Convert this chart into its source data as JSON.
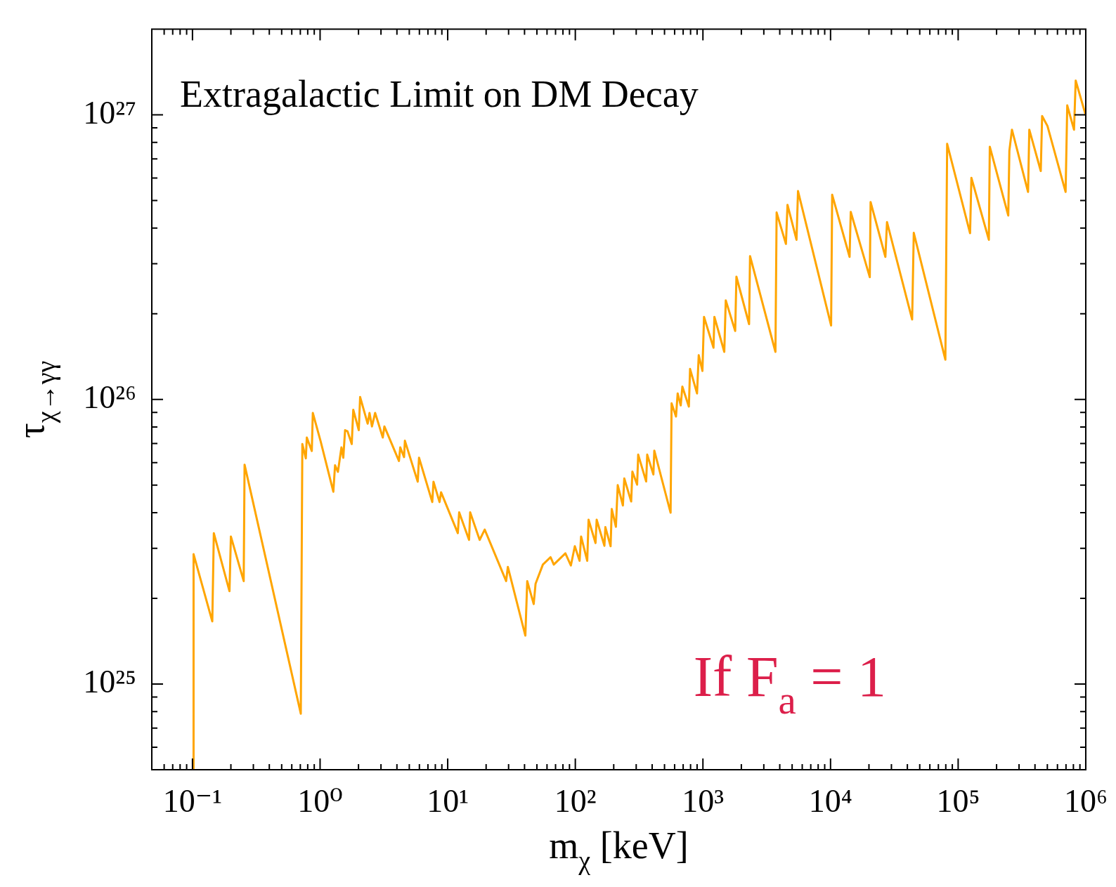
{
  "chart_data": {
    "type": "line",
    "title": "Extragalactic Limit on DM Decay",
    "xlabel": "m$_{χ}$ [keV]",
    "ylabel": "τ$_{χ→γγ}$",
    "annotations": [
      "If F$_{a}$ = 1"
    ],
    "log": "xy",
    "marker": "none",
    "color": "#ffa500",
    "xlim": [
      0.048,
      1000000
    ],
    "ylim": [
      5e+24,
      2e+27
    ],
    "xticks": [
      {
        "value": 0.06,
        "label": null
      },
      {
        "value": 0.07,
        "label": null
      },
      {
        "value": 0.08,
        "label": null
      },
      {
        "value": 0.09,
        "label": null
      },
      {
        "value": 0.1,
        "label": "10⁻¹"
      },
      {
        "value": 0.2,
        "label": null
      },
      {
        "value": 0.3,
        "label": null
      },
      {
        "value": 0.4,
        "label": null
      },
      {
        "value": 0.5,
        "label": null
      },
      {
        "value": 0.6,
        "label": null
      },
      {
        "value": 0.7,
        "label": null
      },
      {
        "value": 0.8,
        "label": null
      },
      {
        "value": 0.9,
        "label": null
      },
      {
        "value": 1,
        "label": "10⁰"
      },
      {
        "value": 2,
        "label": null
      },
      {
        "value": 3,
        "label": null
      },
      {
        "value": 4,
        "label": null
      },
      {
        "value": 5,
        "label": null
      },
      {
        "value": 6,
        "label": null
      },
      {
        "value": 7,
        "label": null
      },
      {
        "value": 8,
        "label": null
      },
      {
        "value": 9,
        "label": null
      },
      {
        "value": 10,
        "label": "10¹"
      },
      {
        "value": 20,
        "label": null
      },
      {
        "value": 30,
        "label": null
      },
      {
        "value": 40,
        "label": null
      },
      {
        "value": 50,
        "label": null
      },
      {
        "value": 60,
        "label": null
      },
      {
        "value": 70,
        "label": null
      },
      {
        "value": 80,
        "label": null
      },
      {
        "value": 90,
        "label": null
      },
      {
        "value": 100,
        "label": "10²"
      },
      {
        "value": 200,
        "label": null
      },
      {
        "value": 300,
        "label": null
      },
      {
        "value": 400,
        "label": null
      },
      {
        "value": 500,
        "label": null
      },
      {
        "value": 600,
        "label": null
      },
      {
        "value": 700,
        "label": null
      },
      {
        "value": 800,
        "label": null
      },
      {
        "value": 900,
        "label": null
      },
      {
        "value": 1000,
        "label": "10³"
      },
      {
        "value": 2000,
        "label": null
      },
      {
        "value": 3000,
        "label": null
      },
      {
        "value": 4000,
        "label": null
      },
      {
        "value": 5000,
        "label": null
      },
      {
        "value": 6000,
        "label": null
      },
      {
        "value": 7000,
        "label": null
      },
      {
        "value": 8000,
        "label": null
      },
      {
        "value": 9000,
        "label": null
      },
      {
        "value": 10000,
        "label": "10⁴"
      },
      {
        "value": 20000,
        "label": null
      },
      {
        "value": 30000,
        "label": null
      },
      {
        "value": 40000,
        "label": null
      },
      {
        "value": 50000,
        "label": null
      },
      {
        "value": 60000,
        "label": null
      },
      {
        "value": 70000,
        "label": null
      },
      {
        "value": 80000,
        "label": null
      },
      {
        "value": 90000,
        "label": null
      },
      {
        "value": 100000,
        "label": "10⁵"
      },
      {
        "value": 200000,
        "label": null
      },
      {
        "value": 300000,
        "label": null
      },
      {
        "value": 400000,
        "label": null
      },
      {
        "value": 500000,
        "label": null
      },
      {
        "value": 600000,
        "label": null
      },
      {
        "value": 700000,
        "label": null
      },
      {
        "value": 800000,
        "label": null
      },
      {
        "value": 900000,
        "label": null
      },
      {
        "value": 1000000,
        "label": "10⁶"
      }
    ],
    "yticks": [
      {
        "value": 6e+24,
        "label": null
      },
      {
        "value": 7e+24,
        "label": null
      },
      {
        "value": 8e+24,
        "label": null
      },
      {
        "value": 9e+24,
        "label": null
      },
      {
        "value": 1e+25,
        "label": "10²⁵"
      },
      {
        "value": 2e+25,
        "label": null
      },
      {
        "value": 3e+25,
        "label": null
      },
      {
        "value": 4e+25,
        "label": null
      },
      {
        "value": 5e+25,
        "label": null
      },
      {
        "value": 6e+25,
        "label": null
      },
      {
        "value": 7e+25,
        "label": null
      },
      {
        "value": 8e+25,
        "label": null
      },
      {
        "value": 9e+25,
        "label": null
      },
      {
        "value": 1e+26,
        "label": "10²⁶"
      },
      {
        "value": 2e+26,
        "label": null
      },
      {
        "value": 3e+26,
        "label": null
      },
      {
        "value": 4e+26,
        "label": null
      },
      {
        "value": 5e+26,
        "label": null
      },
      {
        "value": 6e+26,
        "label": null
      },
      {
        "value": 7e+26,
        "label": null
      },
      {
        "value": 8e+26,
        "label": null
      },
      {
        "value": 9e+26,
        "label": null
      },
      {
        "value": 1e+27,
        "label": "10²⁷"
      }
    ],
    "x": [
      0.102,
      0.102,
      0.143,
      0.147,
      0.195,
      0.2,
      0.252,
      0.256,
      0.706,
      0.726,
      0.773,
      0.787,
      0.861,
      0.877,
      1.01,
      1.27,
      1.31,
      1.38,
      1.47,
      1.52,
      1.57,
      1.64,
      1.77,
      1.82,
      2.01,
      2.06,
      2.36,
      2.44,
      2.55,
      2.7,
      3.1,
      3.19,
      4.15,
      4.25,
      4.55,
      4.62,
      5.82,
      5.96,
      7.57,
      7.74,
      8.63,
      8.87,
      12,
      12.3,
      14.7,
      15,
      17.8,
      19.5,
      28.7,
      29.6,
      40.6,
      42,
      47.2,
      48.8,
      55.7,
      64,
      67.8,
      83.6,
      92.3,
      99.1,
      108,
      111,
      124,
      127,
      144,
      147,
      169,
      172,
      189,
      193,
      208,
      215,
      236,
      242,
      274,
      280,
      305,
      311,
      359,
      366,
      409,
      416,
      558,
      568,
      615,
      634,
      670,
      690,
      776,
      793,
      899,
      927,
      991,
      1020,
      1210,
      1230,
      1470,
      1510,
      1790,
      1830,
      2300,
      2340,
      3700,
      3780,
      4470,
      4600,
      5410,
      5560,
      10100,
      10300,
      14100,
      14400,
      20300,
      20600,
      26900,
      27700,
      43600,
      44900,
      79400,
      82000,
      124000,
      127000,
      174000,
      177000,
      247000,
      252000,
      264000,
      353000,
      361000,
      444000,
      455000,
      501000,
      695000,
      716000,
      809000,
      834000,
      998000
    ],
    "values": [
      5e+24,
      2.86e+25,
      1.66e+25,
      3.39e+25,
      2.12e+25,
      3.3e+25,
      2.3e+25,
      5.9e+25,
      7.87e+24,
      6.97e+25,
      6.21e+25,
      7.35e+25,
      6.59e+25,
      8.97e+25,
      7.13e+25,
      4.74e+25,
      5.87e+25,
      5.57e+25,
      6.79e+25,
      6.24e+25,
      7.8e+25,
      7.73e+25,
      6.97e+25,
      9.2e+25,
      7.8e+25,
      1.02e+26,
      8.22e+25,
      8.97e+25,
      8.04e+25,
      8.97e+25,
      7.35e+25,
      8.04e+25,
      6.08e+25,
      6.79e+25,
      6.27e+25,
      7.16e+25,
      5.14e+25,
      6.24e+25,
      4.36e+25,
      5.14e+25,
      4.36e+25,
      4.72e+25,
      3.39e+25,
      4.01e+25,
      3.21e+25,
      4.01e+25,
      3.21e+25,
      3.49e+25,
      2.3e+25,
      2.58e+25,
      1.48e+25,
      2.3e+25,
      1.91e+25,
      2.25e+25,
      2.63e+25,
      2.79e+25,
      2.63e+25,
      2.88e+25,
      2.61e+25,
      3.05e+25,
      2.71e+25,
      3.3e+25,
      2.71e+25,
      3.78e+25,
      3.13e+25,
      3.78e+25,
      3.06e+25,
      3.56e+25,
      3.05e+25,
      4.12e+25,
      3.57e+25,
      5e+25,
      4.24e+25,
      5.28e+25,
      4.38e+25,
      5.58e+25,
      5.02e+25,
      6.4e+25,
      5.15e+25,
      6.4e+25,
      5.45e+25,
      6.61e+25,
      4e+25,
      9.7e+25,
      8.71e+25,
      1.05e+26,
      9.53e+25,
      1.11e+26,
      9.44e+25,
      1.28e+26,
      1.05e+26,
      1.43e+26,
      1.26e+26,
      1.95e+26,
      1.52e+26,
      1.95e+26,
      1.47e+26,
      2.23e+26,
      1.74e+26,
      2.7e+26,
      1.84e+26,
      3.19e+26,
      1.47e+26,
      4.54e+26,
      3.52e+26,
      4.83e+26,
      3.64e+26,
      5.4e+26,
      1.82e+26,
      5.24e+26,
      3.17e+26,
      4.56e+26,
      2.69e+26,
      4.94e+26,
      3.17e+26,
      4.2e+26,
      1.91e+26,
      3.85e+26,
      1.38e+26,
      7.91e+26,
      3.84e+26,
      6.01e+26,
      3.64e+26,
      7.73e+26,
      4.43e+26,
      7.48e+26,
      8.87e+26,
      5.36e+26,
      8.87e+26,
      6.35e+26,
      9.91e+26,
      9.14e+26,
      5.36e+26,
      1.08e+27,
      8.87e+26,
      1.32e+27,
      9.98e+26
    ]
  }
}
